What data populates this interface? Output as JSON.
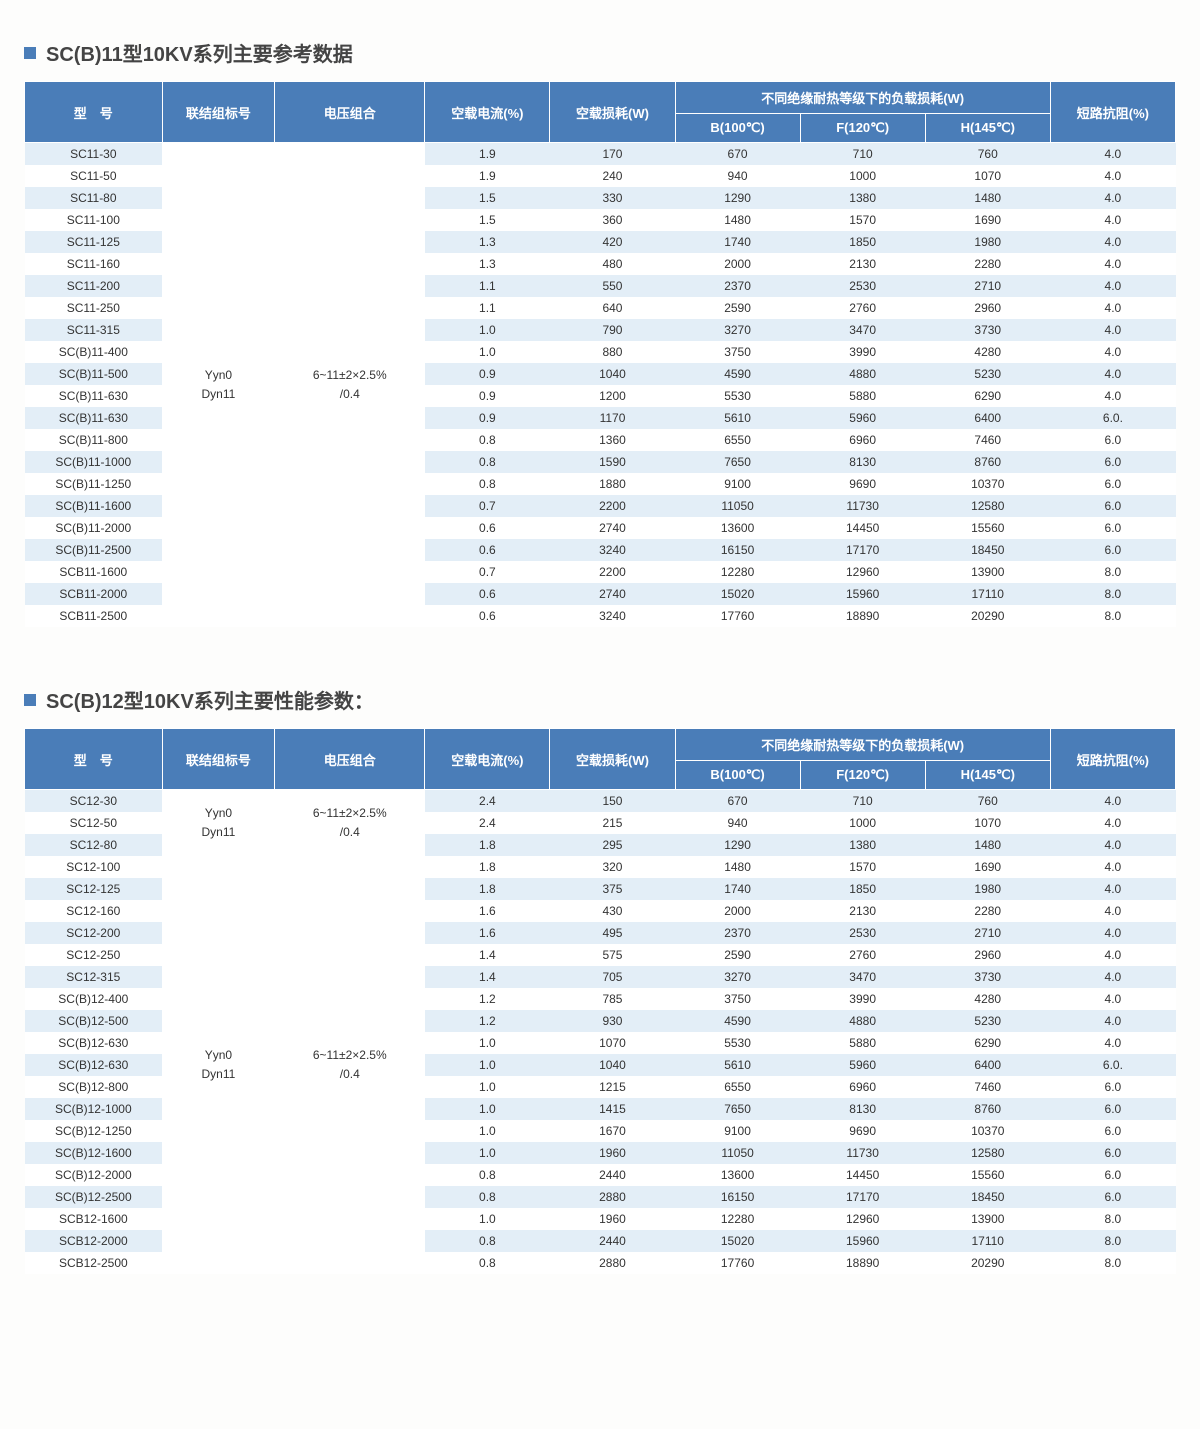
{
  "table1": {
    "title": "SC(B)11型10KV系列主要参考数据",
    "headers": {
      "model": "型　号",
      "conn": "联结组标号",
      "volt": "电压组合",
      "cur": "空载电流(%)",
      "noload": "空载损耗(W)",
      "loadloss_group": "不同绝缘耐热等级下的负载损耗(W)",
      "b": "B(100℃)",
      "f": "F(120℃)",
      "h": "H(145℃)",
      "imp": "短路抗阻(%)"
    },
    "conn_text": "Yyn0\nDyn11",
    "volt_text": "6~11±2×2.5%\n/0.4",
    "rows": [
      [
        "SC11-30",
        "1.9",
        "170",
        "670",
        "710",
        "760",
        "4.0"
      ],
      [
        "SC11-50",
        "1.9",
        "240",
        "940",
        "1000",
        "1070",
        "4.0"
      ],
      [
        "SC11-80",
        "1.5",
        "330",
        "1290",
        "1380",
        "1480",
        "4.0"
      ],
      [
        "SC11-100",
        "1.5",
        "360",
        "1480",
        "1570",
        "1690",
        "4.0"
      ],
      [
        "SC11-125",
        "1.3",
        "420",
        "1740",
        "1850",
        "1980",
        "4.0"
      ],
      [
        "SC11-160",
        "1.3",
        "480",
        "2000",
        "2130",
        "2280",
        "4.0"
      ],
      [
        "SC11-200",
        "1.1",
        "550",
        "2370",
        "2530",
        "2710",
        "4.0"
      ],
      [
        "SC11-250",
        "1.1",
        "640",
        "2590",
        "2760",
        "2960",
        "4.0"
      ],
      [
        "SC11-315",
        "1.0",
        "790",
        "3270",
        "3470",
        "3730",
        "4.0"
      ],
      [
        "SC(B)11-400",
        "1.0",
        "880",
        "3750",
        "3990",
        "4280",
        "4.0"
      ],
      [
        "SC(B)11-500",
        "0.9",
        "1040",
        "4590",
        "4880",
        "5230",
        "4.0"
      ],
      [
        "SC(B)11-630",
        "0.9",
        "1200",
        "5530",
        "5880",
        "6290",
        "4.0"
      ],
      [
        "SC(B)11-630",
        "0.9",
        "1170",
        "5610",
        "5960",
        "6400",
        "6.0."
      ],
      [
        "SC(B)11-800",
        "0.8",
        "1360",
        "6550",
        "6960",
        "7460",
        "6.0"
      ],
      [
        "SC(B)11-1000",
        "0.8",
        "1590",
        "7650",
        "8130",
        "8760",
        "6.0"
      ],
      [
        "SC(B)11-1250",
        "0.8",
        "1880",
        "9100",
        "9690",
        "10370",
        "6.0"
      ],
      [
        "SC(B)11-1600",
        "0.7",
        "2200",
        "11050",
        "11730",
        "12580",
        "6.0"
      ],
      [
        "SC(B)11-2000",
        "0.6",
        "2740",
        "13600",
        "14450",
        "15560",
        "6.0"
      ],
      [
        "SC(B)11-2500",
        "0.6",
        "3240",
        "16150",
        "17170",
        "18450",
        "6.0"
      ],
      [
        "SCB11-1600",
        "0.7",
        "2200",
        "12280",
        "12960",
        "13900",
        "8.0"
      ],
      [
        "SCB11-2000",
        "0.6",
        "2740",
        "15020",
        "15960",
        "17110",
        "8.0"
      ],
      [
        "SCB11-2500",
        "0.6",
        "3240",
        "17760",
        "18890",
        "20290",
        "8.0"
      ]
    ]
  },
  "table2": {
    "title": "SC(B)12型10KV系列主要性能参数：",
    "headers": {
      "model": "型　号",
      "conn": "联结组标号",
      "volt": "电压组合",
      "cur": "空载电流(%)",
      "noload": "空载损耗(W)",
      "loadloss_group": "不同绝缘耐热等级下的负载损耗(W)",
      "b": "B(100℃)",
      "f": "F(120℃)",
      "h": "H(145℃)",
      "imp": "短路抗阻(%)"
    },
    "conn_text1": "Yyn0\nDyn11",
    "volt_text1": "6~11±2×2.5%\n/0.4",
    "conn_text2": "Yyn0\nDyn11",
    "volt_text2": "6~11±2×2.5%\n/0.4",
    "rows": [
      [
        "SC12-30",
        "2.4",
        "150",
        "670",
        "710",
        "760",
        "4.0"
      ],
      [
        "SC12-50",
        "2.4",
        "215",
        "940",
        "1000",
        "1070",
        "4.0"
      ],
      [
        "SC12-80",
        "1.8",
        "295",
        "1290",
        "1380",
        "1480",
        "4.0"
      ],
      [
        "SC12-100",
        "1.8",
        "320",
        "1480",
        "1570",
        "1690",
        "4.0"
      ],
      [
        "SC12-125",
        "1.8",
        "375",
        "1740",
        "1850",
        "1980",
        "4.0"
      ],
      [
        "SC12-160",
        "1.6",
        "430",
        "2000",
        "2130",
        "2280",
        "4.0"
      ],
      [
        "SC12-200",
        "1.6",
        "495",
        "2370",
        "2530",
        "2710",
        "4.0"
      ],
      [
        "SC12-250",
        "1.4",
        "575",
        "2590",
        "2760",
        "2960",
        "4.0"
      ],
      [
        "SC12-315",
        "1.4",
        "705",
        "3270",
        "3470",
        "3730",
        "4.0"
      ],
      [
        "SC(B)12-400",
        "1.2",
        "785",
        "3750",
        "3990",
        "4280",
        "4.0"
      ],
      [
        "SC(B)12-500",
        "1.2",
        "930",
        "4590",
        "4880",
        "5230",
        "4.0"
      ],
      [
        "SC(B)12-630",
        "1.0",
        "1070",
        "5530",
        "5880",
        "6290",
        "4.0"
      ],
      [
        "SC(B)12-630",
        "1.0",
        "1040",
        "5610",
        "5960",
        "6400",
        "6.0."
      ],
      [
        "SC(B)12-800",
        "1.0",
        "1215",
        "6550",
        "6960",
        "7460",
        "6.0"
      ],
      [
        "SC(B)12-1000",
        "1.0",
        "1415",
        "7650",
        "8130",
        "8760",
        "6.0"
      ],
      [
        "SC(B)12-1250",
        "1.0",
        "1670",
        "9100",
        "9690",
        "10370",
        "6.0"
      ],
      [
        "SC(B)12-1600",
        "1.0",
        "1960",
        "11050",
        "11730",
        "12580",
        "6.0"
      ],
      [
        "SC(B)12-2000",
        "0.8",
        "2440",
        "13600",
        "14450",
        "15560",
        "6.0"
      ],
      [
        "SC(B)12-2500",
        "0.8",
        "2880",
        "16150",
        "17170",
        "18450",
        "6.0"
      ],
      [
        "SCB12-1600",
        "1.0",
        "1960",
        "12280",
        "12960",
        "13900",
        "8.0"
      ],
      [
        "SCB12-2000",
        "0.8",
        "2440",
        "15020",
        "15960",
        "17110",
        "8.0"
      ],
      [
        "SCB12-2500",
        "0.8",
        "2880",
        "17760",
        "18890",
        "20290",
        "8.0"
      ]
    ]
  },
  "style": {
    "header_bg": "#4a7db8",
    "header_fg": "#ffffff",
    "row_odd_bg": "#e3eef7",
    "row_even_bg": "#ffffff",
    "bullet_color": "#4a7db8",
    "text_color": "#333333"
  }
}
